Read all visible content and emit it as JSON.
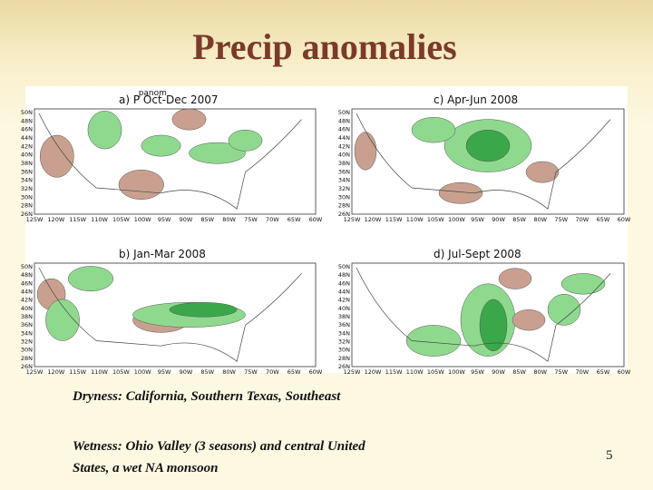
{
  "title": "Precip anomalies",
  "maps": [
    {
      "title": "a) P  Oct-Dec 2007",
      "label": "panom"
    },
    {
      "title": "c) Apr-Jun 2008"
    },
    {
      "title": "b) Jan-Mar 2008"
    },
    {
      "title": "d) Jul-Sept 2008"
    }
  ],
  "latitude_labels": [
    "50N",
    "48N",
    "46N",
    "44N",
    "42N",
    "40N",
    "38N",
    "36N",
    "34N",
    "32N",
    "30N",
    "28N",
    "26N"
  ],
  "longitude_labels": [
    "125W",
    "120W",
    "115W",
    "110W",
    "105W",
    "100W",
    "95W",
    "90W",
    "85W",
    "80W",
    "75W",
    "70W",
    "65W",
    "60W"
  ],
  "notes": [
    "Dryness: California, Southern Texas, Southeast",
    "Wetness: Ohio Valley (3 seasons) and central United States, a wet NA  monsoon"
  ],
  "page_number": "5"
}
